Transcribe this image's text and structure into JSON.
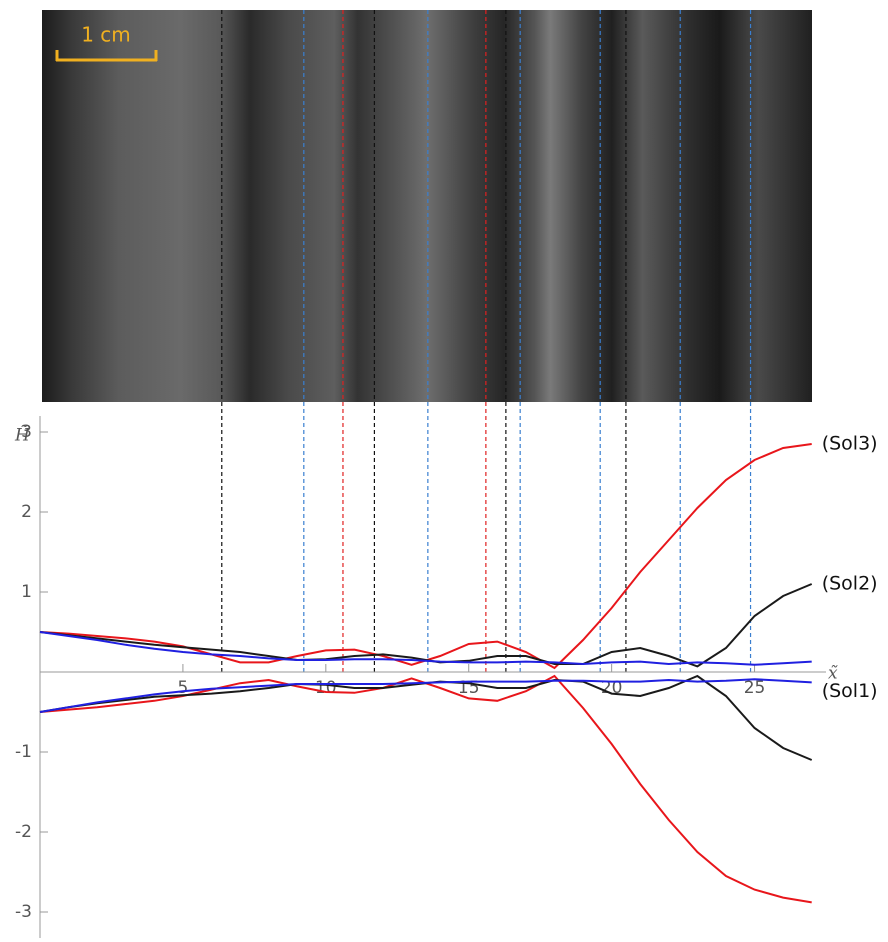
{
  "chart_data": {
    "type": "line",
    "scale_bar": "1 cm",
    "x_label": "x̃",
    "y_label": "H̃",
    "x": [
      0,
      1,
      2,
      3,
      4,
      5,
      6,
      7,
      8,
      9,
      10,
      11,
      12,
      13,
      14,
      15,
      16,
      17,
      18,
      19,
      20,
      21,
      22,
      23,
      24,
      25,
      26,
      27
    ],
    "series": [
      {
        "name": "(Sol3)",
        "color": "#e8161b",
        "values": [
          0.5,
          0.48,
          0.45,
          0.42,
          0.38,
          0.32,
          0.22,
          0.12,
          0.12,
          0.2,
          0.27,
          0.28,
          0.2,
          0.09,
          0.2,
          0.35,
          0.38,
          0.25,
          0.05,
          0.4,
          0.8,
          1.25,
          1.65,
          2.05,
          2.4,
          2.65,
          2.8,
          2.85
        ],
        "lower": [
          -0.5,
          -0.47,
          -0.44,
          -0.4,
          -0.36,
          -0.3,
          -0.22,
          -0.14,
          -0.1,
          -0.18,
          -0.25,
          -0.26,
          -0.2,
          -0.08,
          -0.2,
          -0.33,
          -0.36,
          -0.24,
          -0.05,
          -0.45,
          -0.9,
          -1.4,
          -1.85,
          -2.25,
          -2.55,
          -2.72,
          -2.82,
          -2.88
        ]
      },
      {
        "name": "(Sol2)",
        "color": "#1a1a1a",
        "values": [
          0.5,
          0.46,
          0.42,
          0.38,
          0.34,
          0.31,
          0.28,
          0.25,
          0.2,
          0.15,
          0.16,
          0.2,
          0.22,
          0.18,
          0.12,
          0.14,
          0.2,
          0.2,
          0.1,
          0.1,
          0.25,
          0.3,
          0.2,
          0.07,
          0.3,
          0.7,
          0.95,
          1.1
        ],
        "lower": [
          -0.5,
          -0.44,
          -0.39,
          -0.35,
          -0.31,
          -0.29,
          -0.27,
          -0.24,
          -0.2,
          -0.15,
          -0.16,
          -0.2,
          -0.2,
          -0.16,
          -0.12,
          -0.14,
          -0.2,
          -0.2,
          -0.1,
          -0.12,
          -0.27,
          -0.3,
          -0.2,
          -0.05,
          -0.3,
          -0.7,
          -0.95,
          -1.1
        ]
      },
      {
        "name": "(Sol1)",
        "color": "#2020e0",
        "values": [
          0.5,
          0.45,
          0.4,
          0.34,
          0.29,
          0.25,
          0.22,
          0.2,
          0.17,
          0.15,
          0.15,
          0.16,
          0.16,
          0.15,
          0.13,
          0.12,
          0.12,
          0.13,
          0.12,
          0.1,
          0.12,
          0.13,
          0.1,
          0.12,
          0.11,
          0.09,
          0.11,
          0.13
        ],
        "lower": [
          -0.5,
          -0.44,
          -0.38,
          -0.33,
          -0.28,
          -0.24,
          -0.21,
          -0.19,
          -0.17,
          -0.15,
          -0.15,
          -0.15,
          -0.15,
          -0.14,
          -0.13,
          -0.12,
          -0.12,
          -0.12,
          -0.11,
          -0.11,
          -0.12,
          -0.12,
          -0.1,
          -0.12,
          -0.11,
          -0.09,
          -0.11,
          -0.13
        ]
      }
    ],
    "markers": [
      {
        "x": 6.36,
        "color": "#111111"
      },
      {
        "x": 11.7,
        "color": "#111111"
      },
      {
        "x": 16.3,
        "color": "#111111"
      },
      {
        "x": 20.5,
        "color": "#111111"
      },
      {
        "x": 9.23,
        "color": "#3a7fd0"
      },
      {
        "x": 13.57,
        "color": "#3a7fd0"
      },
      {
        "x": 16.8,
        "color": "#3a7fd0"
      },
      {
        "x": 19.6,
        "color": "#3a7fd0"
      },
      {
        "x": 22.4,
        "color": "#3a7fd0"
      },
      {
        "x": 24.86,
        "color": "#3a7fd0"
      },
      {
        "x": 10.6,
        "color": "#e02020"
      },
      {
        "x": 15.6,
        "color": "#e02020"
      }
    ],
    "xlim": [
      0,
      27.5
    ],
    "xticks": [
      5,
      10,
      15,
      20,
      25
    ],
    "ylim": [
      -3.2,
      3.2
    ],
    "yticks": [
      -3,
      -2,
      -1,
      1,
      2,
      3
    ]
  }
}
